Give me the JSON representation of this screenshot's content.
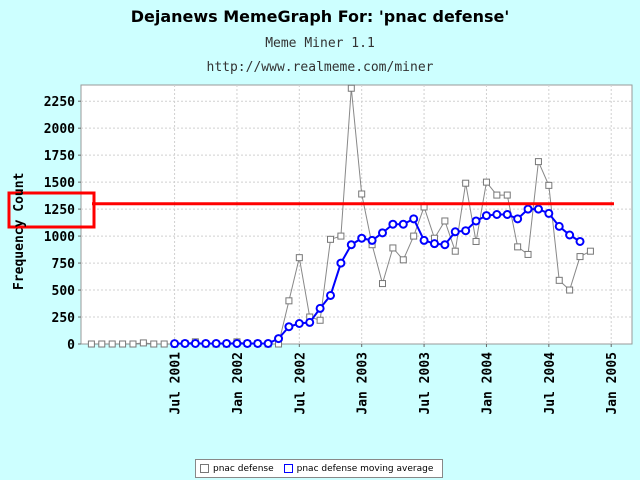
{
  "chart_data": {
    "type": "line",
    "title": "Dejanews MemeGraph For: 'pnac defense'",
    "subtitle": "Meme Miner 1.1",
    "source": "http://www.realmeme.com/miner",
    "xlabel": "",
    "ylabel": "Frequency Count",
    "ylim": [
      0,
      2400
    ],
    "yticks": [
      0,
      250,
      500,
      750,
      1000,
      1250,
      1500,
      1750,
      2000,
      2250
    ],
    "x_start": "2000-10",
    "x_end": "2005-03",
    "x": [
      "2000-11",
      "2000-12",
      "2001-01",
      "2001-02",
      "2001-03",
      "2001-04",
      "2001-05",
      "2001-06",
      "2001-07",
      "2001-08",
      "2001-09",
      "2001-10",
      "2001-11",
      "2001-12",
      "2002-01",
      "2002-02",
      "2002-03",
      "2002-04",
      "2002-05",
      "2002-06",
      "2002-07",
      "2002-08",
      "2002-09",
      "2002-10",
      "2002-11",
      "2002-12",
      "2003-01",
      "2003-02",
      "2003-03",
      "2003-04",
      "2003-05",
      "2003-06",
      "2003-07",
      "2003-08",
      "2003-09",
      "2003-10",
      "2003-11",
      "2003-12",
      "2004-01",
      "2004-02",
      "2004-03",
      "2004-04",
      "2004-05",
      "2004-06",
      "2004-07",
      "2004-08",
      "2004-09",
      "2004-10",
      "2004-11",
      "2004-12",
      "2005-01",
      "2005-02"
    ],
    "xtick_labels": [
      {
        "date": "2001-07",
        "label": "Jul 2001"
      },
      {
        "date": "2002-01",
        "label": "Jan 2002"
      },
      {
        "date": "2002-07",
        "label": "Jul 2002"
      },
      {
        "date": "2003-01",
        "label": "Jan 2003"
      },
      {
        "date": "2003-07",
        "label": "Jul 2003"
      },
      {
        "date": "2004-01",
        "label": "Jan 2004"
      },
      {
        "date": "2004-07",
        "label": "Jul 2004"
      },
      {
        "date": "2005-01",
        "label": "Jan 2005"
      }
    ],
    "grid": true,
    "legend_position": "bottom",
    "series": [
      {
        "name": "pnac defense",
        "color": "#888888",
        "marker": "square",
        "values": [
          0,
          0,
          0,
          0,
          0,
          10,
          0,
          0,
          0,
          5,
          20,
          0,
          0,
          0,
          20,
          5,
          5,
          0,
          0,
          400,
          800,
          250,
          220,
          970,
          1000,
          2370,
          1390,
          920,
          560,
          890,
          780,
          1000,
          1270,
          980,
          1140,
          860,
          1490,
          950,
          1500,
          1380,
          1380,
          900,
          830,
          1690,
          1470,
          590,
          500,
          810,
          860,
          null,
          null,
          null
        ]
      },
      {
        "name": "pnac defense moving average",
        "color": "#0000ff",
        "marker": "circle",
        "values": [
          null,
          null,
          null,
          null,
          null,
          null,
          null,
          null,
          3,
          5,
          5,
          5,
          5,
          5,
          5,
          5,
          5,
          5,
          50,
          160,
          190,
          200,
          330,
          450,
          750,
          920,
          980,
          960,
          1030,
          1110,
          1110,
          1160,
          960,
          930,
          920,
          1040,
          1050,
          1140,
          1190,
          1200,
          1200,
          1160,
          1250,
          1250,
          1210,
          1090,
          1010,
          950,
          null,
          null,
          null,
          null
        ]
      }
    ],
    "annotations": [
      {
        "type": "horizontal-line",
        "value": 1300,
        "color": "#ff0000"
      },
      {
        "type": "box",
        "color": "#ff0000"
      }
    ],
    "legend": [
      "pnac defense",
      "pnac defense moving average"
    ]
  }
}
